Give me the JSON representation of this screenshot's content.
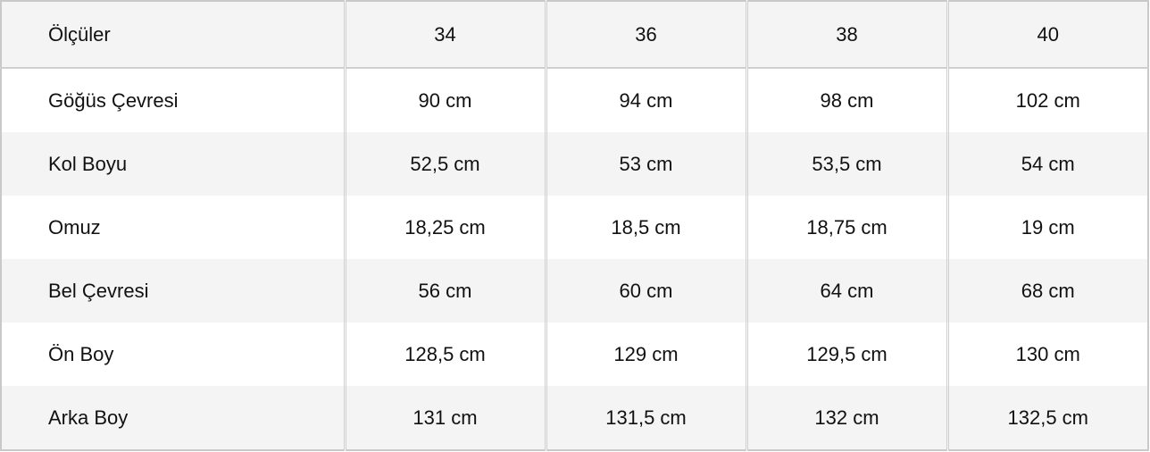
{
  "header": [
    "Ölçüler",
    "34",
    "36",
    "38",
    "40"
  ],
  "rows": [
    {
      "label": "Göğüs Çevresi",
      "values": [
        "90 cm",
        "94 cm",
        "98 cm",
        "102 cm"
      ]
    },
    {
      "label": "Kol Boyu",
      "values": [
        "52,5 cm",
        "53 cm",
        "53,5 cm",
        "54 cm"
      ]
    },
    {
      "label": "Omuz",
      "values": [
        "18,25 cm",
        "18,5 cm",
        "18,75 cm",
        "19 cm"
      ]
    },
    {
      "label": "Bel Çevresi",
      "values": [
        "56 cm",
        "60 cm",
        "64 cm",
        "68 cm"
      ]
    },
    {
      "label": "Ön Boy",
      "values": [
        "128,5 cm",
        "129 cm",
        "129,5 cm",
        "130 cm"
      ]
    },
    {
      "label": "Arka Boy",
      "values": [
        "131 cm",
        "131,5 cm",
        "132 cm",
        "132,5 cm"
      ]
    }
  ]
}
